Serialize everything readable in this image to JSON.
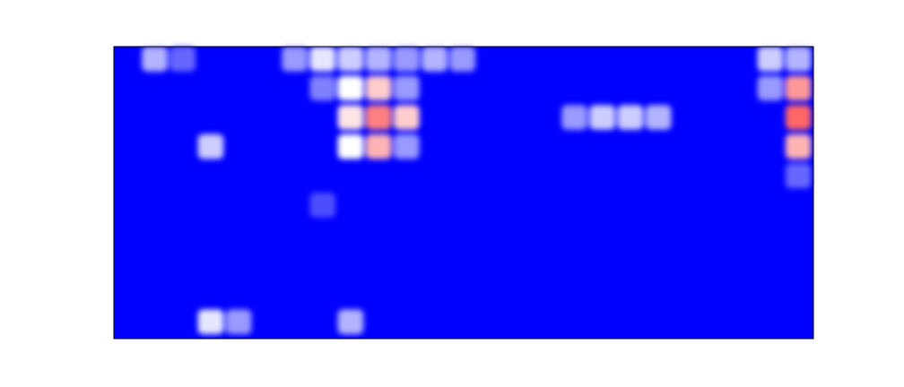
{
  "chart_data": {
    "type": "heatmap",
    "colormap": "bwr",
    "colors": {
      "low": "#0000ff",
      "mid": "#ffffff",
      "high": "#ff0000",
      "background": "#ffffff",
      "frame": "#000000"
    },
    "grid": false,
    "legend": "none",
    "axes_ticks": "none",
    "value_range": [
      0,
      1
    ],
    "rows": 10,
    "cols": 25,
    "title": "",
    "xlabel": "",
    "ylabel": "",
    "cells": [
      [
        0,
        0.35,
        0.2,
        0,
        0,
        0,
        0.3,
        0.45,
        0.4,
        0.35,
        0.3,
        0.35,
        0.3,
        0,
        0,
        0,
        0,
        0,
        0,
        0,
        0,
        0,
        0,
        0.4,
        0.35
      ],
      [
        0,
        0,
        0,
        0,
        0,
        0,
        0,
        0.25,
        0.5,
        0.6,
        0.3,
        0,
        0,
        0,
        0,
        0,
        0,
        0,
        0,
        0,
        0,
        0,
        0,
        0.3,
        0.7
      ],
      [
        0,
        0,
        0,
        0,
        0,
        0,
        0,
        0,
        0.55,
        0.75,
        0.6,
        0,
        0,
        0,
        0,
        0,
        0.3,
        0.4,
        0.4,
        0.35,
        0,
        0,
        0,
        0,
        0.8
      ],
      [
        0,
        0,
        0,
        0.4,
        0,
        0,
        0,
        0,
        0.5,
        0.65,
        0.3,
        0,
        0,
        0,
        0,
        0,
        0,
        0,
        0,
        0,
        0,
        0,
        0,
        0,
        0.65
      ],
      [
        0,
        0,
        0,
        0,
        0,
        0,
        0,
        0,
        0,
        0,
        0,
        0,
        0,
        0,
        0,
        0,
        0,
        0,
        0,
        0,
        0,
        0,
        0,
        0,
        0.2
      ],
      [
        0,
        0,
        0,
        0,
        0,
        0,
        0,
        0.15,
        0,
        0,
        0,
        0,
        0,
        0,
        0,
        0,
        0,
        0,
        0,
        0,
        0,
        0,
        0,
        0,
        0
      ],
      [
        0,
        0,
        0,
        0,
        0,
        0,
        0,
        0,
        0,
        0,
        0,
        0,
        0,
        0,
        0,
        0,
        0,
        0,
        0,
        0,
        0,
        0,
        0,
        0,
        0
      ],
      [
        0,
        0,
        0,
        0,
        0,
        0,
        0,
        0,
        0,
        0,
        0,
        0,
        0,
        0,
        0,
        0,
        0,
        0,
        0,
        0,
        0,
        0,
        0,
        0,
        0
      ],
      [
        0,
        0,
        0,
        0,
        0,
        0,
        0,
        0,
        0,
        0,
        0,
        0,
        0,
        0,
        0,
        0,
        0,
        0,
        0,
        0,
        0,
        0,
        0,
        0,
        0
      ],
      [
        0,
        0,
        0,
        0.45,
        0.3,
        0,
        0,
        0,
        0.35,
        0,
        0,
        0,
        0,
        0,
        0,
        0,
        0,
        0,
        0,
        0,
        0,
        0,
        0,
        0,
        0
      ]
    ]
  }
}
